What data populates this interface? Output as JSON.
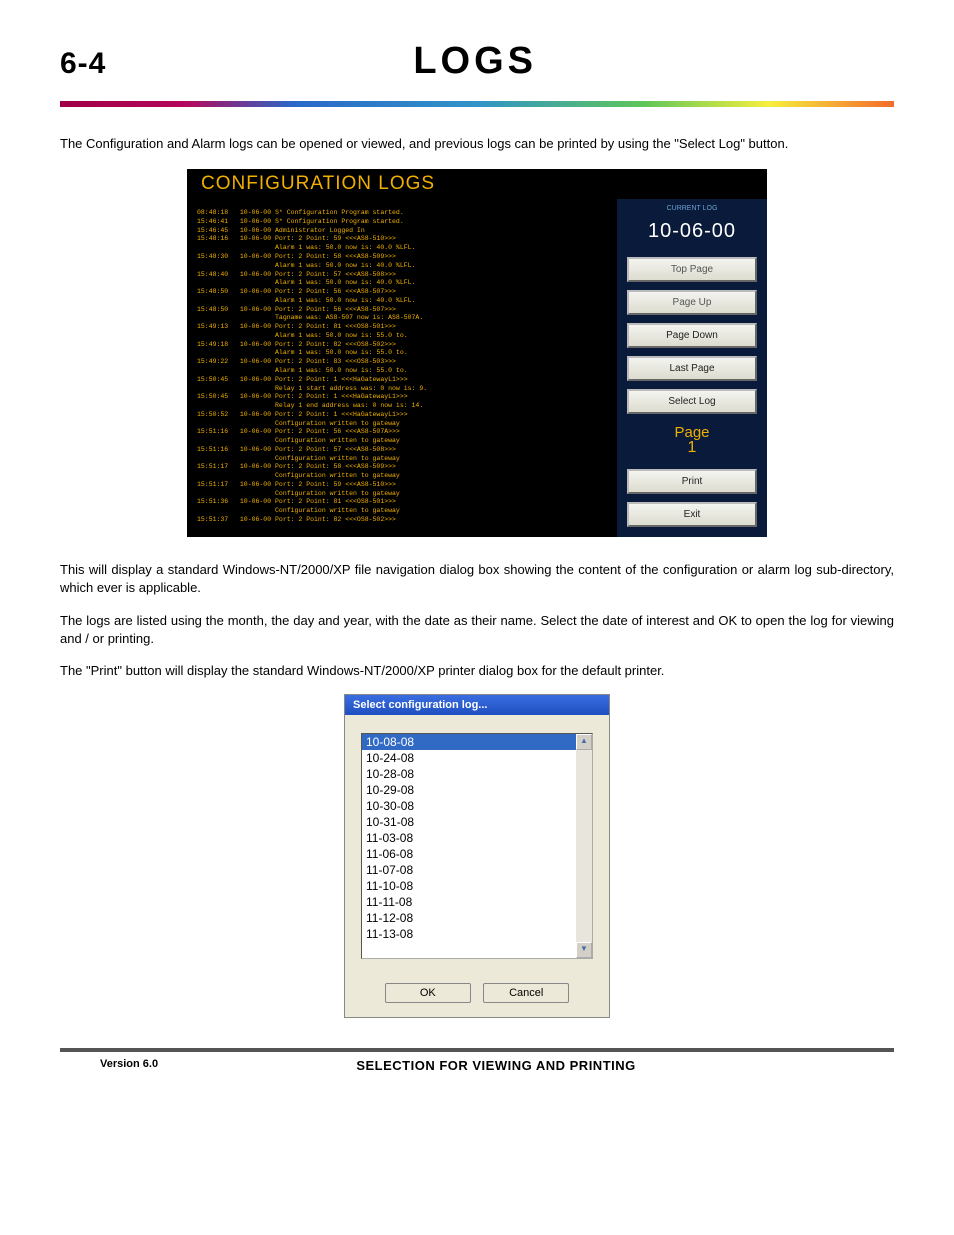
{
  "header": {
    "section_number": "6-4",
    "title": "LOGS",
    "gradient_colors": [
      "#a00046",
      "#b5085c",
      "#2a68c8",
      "#3194c8",
      "#5fc658",
      "#f6ef3f",
      "#f46a2a"
    ]
  },
  "paragraphs": {
    "p1": "The Configuration and Alarm logs can be opened or viewed, and previous logs can be printed by using the \"Select Log\" button.",
    "p2": "This will display a standard Windows-NT/2000/XP file navigation dialog box showing the content of the configuration or alarm log sub-directory, which ever is applicable.",
    "p3": "The logs are listed using the month, the day and year, with the date as their name.  Select the date of interest and OK to open the log for viewing and / or printing.",
    "p4": "The \"Print\" button will display the standard Windows-NT/2000/XP printer dialog box for the default printer."
  },
  "config_panel": {
    "title": "CONFIGURATION LOGS",
    "bg_color": "#000000",
    "outer_color": "#0a1a3a",
    "text_color": "#f0b000",
    "font_family": "Courier New",
    "log_text": "08:48:18   10-06-00 S* Configuration Program started.\n15:46:41   10-06-00 S* Configuration Program started.\n15:46:45   10-06-00 Administrator Logged In\n15:48:16   10-06-00 Port: 2 Point: 59 <<<AS8-510>>>\n                    Alarm 1 was: 50.0 now is: 40.0 %LFL.\n15:48:30   10-06-00 Port: 2 Point: 58 <<<AS8-509>>>\n                    Alarm 1 was: 50.0 now is: 40.0 %LFL.\n15:48:40   10-06-00 Port: 2 Point: 57 <<<AS8-508>>>\n                    Alarm 1 was: 50.0 now is: 40.0 %LFL.\n15:48:50   10-06-00 Port: 2 Point: 56 <<<AS8-507>>>\n                    Alarm 1 was: 50.0 now is: 40.0 %LFL.\n15:48:50   10-06-00 Port: 2 Point: 56 <<<AS8-507>>>\n                    Tagname was: AS8-507 now is: AS8-507A.\n15:49:13   10-06-00 Port: 2 Point: 81 <<<OS8-501>>>\n                    Alarm 1 was: 50.0 now is: 55.0 to.\n15:49:18   10-06-00 Port: 2 Point: 82 <<<OS8-502>>>\n                    Alarm 1 was: 50.0 now is: 55.0 to.\n15:49:22   10-06-00 Port: 2 Point: 83 <<<OS8-503>>>\n                    Alarm 1 was: 50.0 now is: 55.0 to.\n15:50:45   10-06-00 Port: 2 Point: 1 <<<HaGatewayL1>>>\n                    Relay 1 start address was: 0 now is: 9.\n15:50:45   10-06-00 Port: 2 Point: 1 <<<HaGatewayL1>>>\n                    Relay 1 end address was: 0 now is: 14.\n15:50:52   10-06-00 Port: 2 Point: 1 <<<HaGatewayL1>>>\n                    Configuration written to gateway\n15:51:16   10-06-00 Port: 2 Point: 56 <<<AS8-507A>>>\n                    Configuration written to gateway\n15:51:16   10-06-00 Port: 2 Point: 57 <<<AS8-508>>>\n                    Configuration written to gateway\n15:51:17   10-06-00 Port: 2 Point: 58 <<<AS8-509>>>\n                    Configuration written to gateway\n15:51:17   10-06-00 Port: 2 Point: 59 <<<AS8-510>>>\n                    Configuration written to gateway\n15:51:36   10-06-00 Port: 2 Point: 81 <<<OS8-501>>>\n                    Configuration written to gateway\n15:51:37   10-06-00 Port: 2 Point: 82 <<<OS8-502>>>",
    "side": {
      "current_label": "CURRENT LOG",
      "date": "10-06-00",
      "buttons": {
        "top": "Top Page",
        "up": "Page Up",
        "down": "Page Down",
        "last": "Last Page",
        "select": "Select Log",
        "print": "Print",
        "exit": "Exit"
      },
      "page_label": "Page",
      "page_num": "1",
      "btn_bg": "#e8e6d8",
      "btn_text_muted": "#777777",
      "btn_text": "#222222"
    }
  },
  "dialog": {
    "title": "Select configuration log...",
    "titlebar_color": "#2f5fd0",
    "bg_color": "#ece9d8",
    "selected_bg": "#316ac5",
    "items": [
      "10-08-08",
      "10-24-08",
      "10-28-08",
      "10-29-08",
      "10-30-08",
      "10-31-08",
      "11-03-08",
      "11-06-08",
      "11-07-08",
      "11-10-08",
      "11-11-08",
      "11-12-08",
      "11-13-08"
    ],
    "selected_index": 0,
    "buttons": {
      "ok": "OK",
      "cancel": "Cancel"
    }
  },
  "footer": {
    "rule_color": "#555555",
    "version": "Version 6.0",
    "label": "SELECTION FOR VIEWING AND PRINTING"
  }
}
